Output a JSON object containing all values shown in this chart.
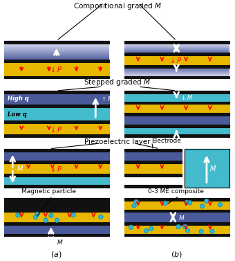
{
  "colors": {
    "gold": "#E8B800",
    "dark_blue": "#4A5A9A",
    "mid_blue": "#6070AA",
    "light_blue": "#9AAAD0",
    "very_light_blue": "#D0DCEE",
    "white_blue": "#EEF2F8",
    "cyan": "#44BBCC",
    "black": "#111111",
    "white": "#FFFFFF",
    "red": "#DD0000",
    "bg": "#FFFFFF",
    "grad_dark": "#5060A0",
    "grad_light": "#C8D4E8"
  },
  "section1_title": "Compositional graded $M$",
  "section2_title": "Stepped graded $M$",
  "section3_title": "Piezoelectric layer",
  "electrode_label": "Electrode",
  "mag_particle_label": "Magnetic particle",
  "me_composite_label": "0-3 ME composite",
  "label_a": "$(a)$",
  "label_b": "$(b)$",
  "high_q": "High q",
  "low_q": "Low q"
}
